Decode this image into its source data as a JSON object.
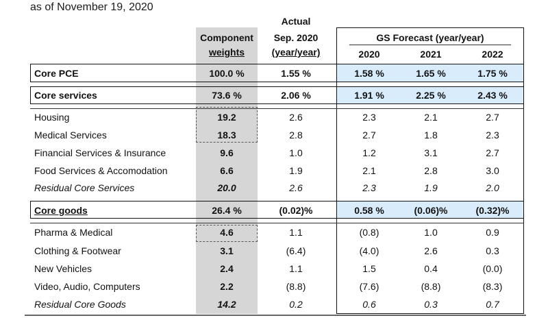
{
  "subtitle": "as of November 19, 2020",
  "headers": {
    "component_line1": "Component",
    "component_line2": "weights",
    "actual_line1": "Actual",
    "actual_line2": "Sep. 2020",
    "actual_line3": "(year/year)",
    "gs_title": "GS Forecast (year/year)",
    "y2020": "2020",
    "y2021": "2021",
    "y2022": "2022"
  },
  "rows": [
    {
      "label": "Core PCE",
      "weight": "100.0 %",
      "actual": "1.55 %",
      "f2020": "1.58 %",
      "f2021": "1.65 %",
      "f2022": "1.75 %"
    },
    {
      "label": "Core services",
      "weight": "73.6 %",
      "actual": "2.06 %",
      "f2020": "1.91 %",
      "f2021": "2.25 %",
      "f2022": "2.43 %"
    },
    {
      "label": "Housing",
      "weight": "19.2",
      "actual": "2.6",
      "f2020": "2.3",
      "f2021": "2.1",
      "f2022": "2.7"
    },
    {
      "label": "Medical Services",
      "weight": "18.3",
      "actual": "2.8",
      "f2020": "2.7",
      "f2021": "1.8",
      "f2022": "2.3"
    },
    {
      "label": "Financial Services & Insurance",
      "weight": "9.6",
      "actual": "1.0",
      "f2020": "1.2",
      "f2021": "3.1",
      "f2022": "2.7"
    },
    {
      "label": "Food Services & Accomodation",
      "weight": "6.6",
      "actual": "1.9",
      "f2020": "2.1",
      "f2021": "2.8",
      "f2022": "3.0"
    },
    {
      "label": "Residual Core Services",
      "weight": "20.0",
      "actual": "2.6",
      "f2020": "2.3",
      "f2021": "1.9",
      "f2022": "2.0"
    },
    {
      "label": "Core goods",
      "weight": "26.4 %",
      "actual": "(0.02)%",
      "f2020": "0.58 %",
      "f2021": "(0.06)%",
      "f2022": "(0.32)%"
    },
    {
      "label": "Pharma & Medical",
      "weight": "4.6",
      "actual": "1.1",
      "f2020": "(0.8)",
      "f2021": "1.0",
      "f2022": "0.9"
    },
    {
      "label": "Clothing & Footwear",
      "weight": "3.1",
      "actual": "(6.4)",
      "f2020": "(4.0)",
      "f2021": "2.6",
      "f2022": "0.3"
    },
    {
      "label": "New Vehicles",
      "weight": "2.4",
      "actual": "1.1",
      "f2020": "1.5",
      "f2021": "0.4",
      "f2022": "(0.0)"
    },
    {
      "label": "Video, Audio, Computers",
      "weight": "2.2",
      "actual": "(8.8)",
      "f2020": "(7.6)",
      "f2021": "(8.8)",
      "f2022": "(8.3)"
    },
    {
      "label": "Residual Core Goods",
      "weight": "14.2",
      "actual": "0.2",
      "f2020": "0.6",
      "f2021": "0.3",
      "f2022": "0.7"
    }
  ],
  "colors": {
    "weights_bg": "#d6d6d6",
    "forecast_highlight": "#d9ecfb",
    "border": "#111111"
  }
}
